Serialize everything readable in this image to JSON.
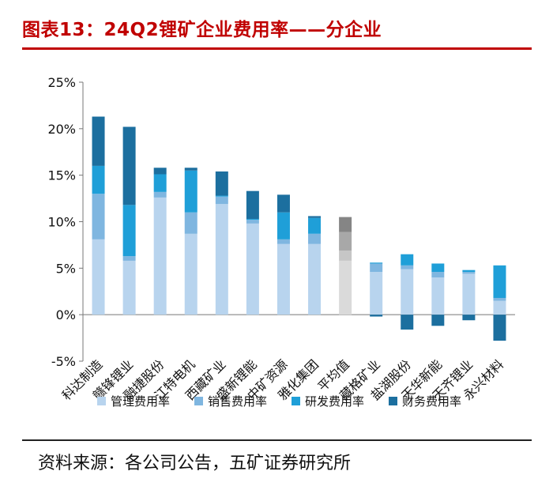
{
  "header": {
    "title": "图表13：24Q2锂矿企业费用率——分企业"
  },
  "footer": {
    "source": "资料来源：各公司公告，五矿证券研究所"
  },
  "chart_data": {
    "type": "bar",
    "stacked": true,
    "title": "图表13：24Q2锂矿企业费用率——分企业",
    "xlabel": "",
    "ylabel": "",
    "ylim": [
      -5,
      25
    ],
    "yticks": [
      -5,
      0,
      5,
      10,
      15,
      20,
      25
    ],
    "ytick_labels": [
      "-5%",
      "0%",
      "5%",
      "10%",
      "15%",
      "20%",
      "25%"
    ],
    "categories": [
      "科达制造",
      "赣锋锂业",
      "融捷股份",
      "江特电机",
      "西藏矿业",
      "盛新锂能",
      "中矿资源",
      "雅化集团",
      "平均值",
      "藏格矿业",
      "盐湖股份",
      "天华新能",
      "天齐锂业",
      "永兴材料"
    ],
    "highlight_category": "平均值",
    "series": [
      {
        "name": "管理费用率",
        "color": "#b8d4ee",
        "highlight_color": "#dadada",
        "values": [
          8.1,
          5.8,
          12.6,
          8.7,
          11.9,
          9.8,
          7.6,
          7.6,
          5.8,
          4.6,
          4.9,
          4.0,
          4.4,
          1.5
        ]
      },
      {
        "name": "销售费用率",
        "color": "#7fb6e0",
        "highlight_color": "#c6c6c6",
        "values": [
          4.9,
          0.5,
          0.6,
          2.3,
          0.8,
          0.4,
          0.5,
          1.1,
          1.1,
          0.9,
          0.4,
          0.6,
          0.2,
          0.3
        ]
      },
      {
        "name": "研发费用率",
        "color": "#1f9fd8",
        "highlight_color": "#a8a8a8",
        "values": [
          3.0,
          5.5,
          1.9,
          4.5,
          0.1,
          0.1,
          2.9,
          1.7,
          2.0,
          0.1,
          1.2,
          0.9,
          0.2,
          3.5
        ]
      },
      {
        "name": "财务费用率",
        "color": "#1c6f9f",
        "highlight_color": "#858585",
        "values": [
          5.3,
          8.4,
          0.7,
          0.3,
          2.6,
          3.0,
          1.9,
          0.2,
          1.6,
          -0.2,
          -1.6,
          -1.2,
          -0.6,
          -2.8
        ]
      }
    ],
    "legend_position": "bottom",
    "grid": false
  }
}
